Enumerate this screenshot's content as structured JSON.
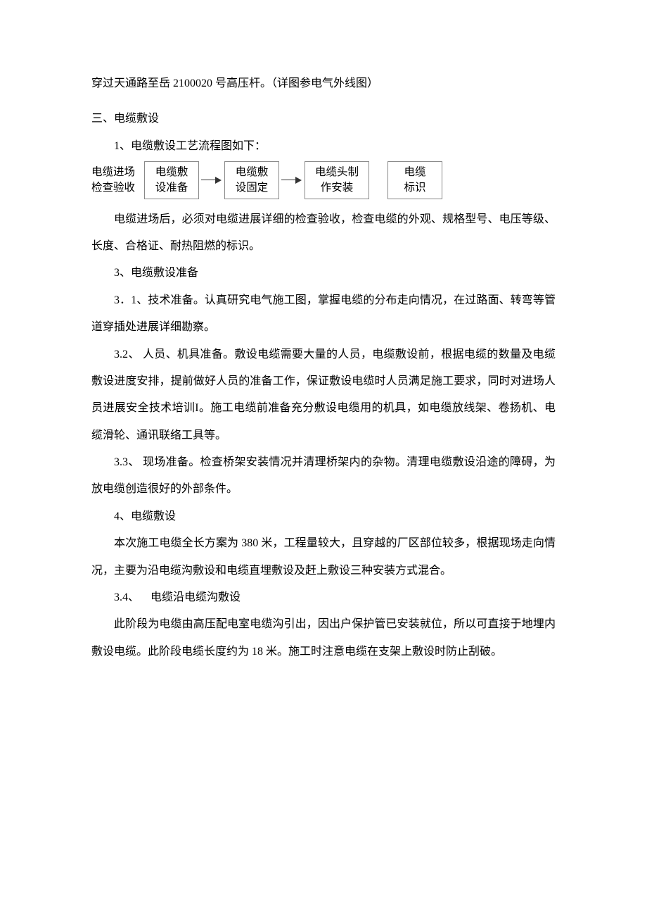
{
  "p1": "穿过天通路至岳 2100020 号高压杆。（详图参电气外线图）",
  "h3": "三、电缆敷设",
  "s1": "1、电缆敷设工艺流程图如下：",
  "flow": {
    "box1": "电缆进场\n检查验收",
    "box2": "电缆敷\n设准备",
    "box3": "电缆敷\n设固定",
    "box4": "电缆头制\n作安装",
    "box5": "电缆\n标识"
  },
  "p2": "电缆进场后，必须对电缆进展详细的检查验收，检查电缆的外观、规格型号、电压等级、长度、合格证、耐热阻燃的标识。",
  "s3": "3、电缆敷设准备",
  "p3_1": "3．1、技术准备。认真研究电气施工图，掌握电缆的分布走向情况，在过路面、转弯等管道穿插处进展详细勘察。",
  "p3_2": "3.2、 人员、机具准备。敷设电缆需要大量的人员，电缆敷设前，根据电缆的数量及电缆敷设进度安排，提前做好人员的准备工作，保证敷设电缆时人员满足施工要求，同时对进场人员进展安全技术培训I。施工电缆前准备充分敷设电缆用的机具，如电缆放线架、卷扬机、电缆滑轮、通讯联络工具等。",
  "p3_3": "3.3、 现场准备。检查桥架安装情况并清理桥架内的杂物。清理电缆敷设沿途的障碍，为放电缆创造很好的外部条件。",
  "s4": "4、电缆敷设",
  "p4": "本次施工电缆全长方案为 380 米，工程量较大，且穿越的厂区部位较多，根据现场走向情况，主要为沿电缆沟敷设和电缆直埋敷设及赶上敷设三种安装方式混合。",
  "s3_4": "3.4、    电缆沿电缆沟敷设",
  "p5": "此阶段为电缆由高压配电室电缆沟引出，因出户保护管已安装就位，所以可直接于地埋内敷设电缆。此阶段电缆长度约为 18 米。施工时注意电缆在支架上敷设时防止刮破。"
}
